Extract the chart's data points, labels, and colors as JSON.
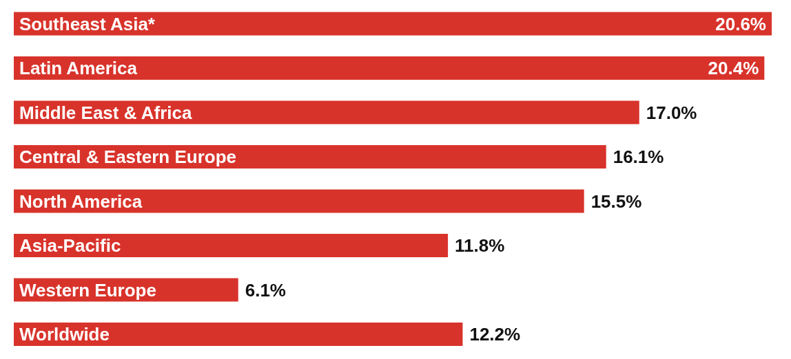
{
  "chart_data": {
    "type": "bar",
    "orientation": "horizontal",
    "categories": [
      "Southeast Asia*",
      "Latin America",
      "Middle East & Africa",
      "Central & Eastern Europe",
      "North America",
      "Asia-Pacific",
      "Western Europe",
      "Worldwide"
    ],
    "values": [
      20.6,
      20.4,
      17.0,
      16.1,
      15.5,
      11.8,
      6.1,
      12.2
    ],
    "value_labels": [
      "20.6%",
      "20.4%",
      "17.0%",
      "16.1%",
      "15.5%",
      "11.8%",
      "6.1%",
      "12.2%"
    ],
    "color": "#d8332b"
  }
}
